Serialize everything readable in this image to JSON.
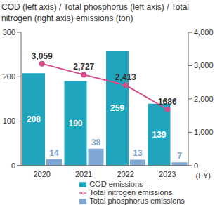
{
  "chart_data": {
    "type": "bar",
    "title": "COD (left axis) / Total phosphorus (left axis) / Total nitrogen (right axis) emissions (ton)",
    "xlabel": "(FY)",
    "categories": [
      "2020",
      "2021",
      "2022",
      "2023"
    ],
    "series": [
      {
        "name": "COD emissions",
        "color": "#1fa6be",
        "type": "bar",
        "values": [
          208,
          190,
          259,
          139
        ]
      },
      {
        "name": "Total phosphorus emissions",
        "color": "#7fa7d6",
        "type": "bar",
        "values": [
          14,
          38,
          13,
          7
        ]
      },
      {
        "name": "Total nitrogen emissions",
        "color": "#d24d8a",
        "type": "line",
        "axis": "y2",
        "marker": "circle",
        "values": [
          3059,
          2727,
          2413,
          1686
        ],
        "value_labels": [
          "3,059",
          "2,727",
          "2,413",
          "1686"
        ]
      }
    ],
    "ylim": [
      0,
      300
    ],
    "yticks": [
      0,
      100,
      200,
      300
    ],
    "y2lim": [
      0,
      4000
    ],
    "y2ticks": [
      0,
      {
        "value": 1000,
        "label": "1,000"
      },
      {
        "value": 2000,
        "label": "2,000"
      },
      {
        "value": 3000,
        "label": "3,000"
      },
      {
        "value": 4000,
        "label": "4,000"
      }
    ],
    "data_labels": true,
    "legend": "bottom",
    "grid": false
  }
}
